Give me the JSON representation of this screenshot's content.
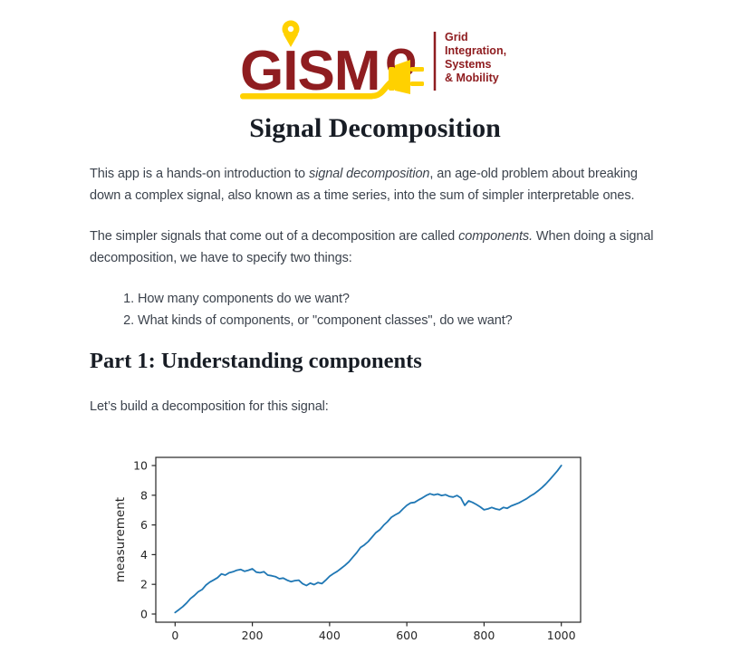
{
  "logo": {
    "wordmark": "GISM",
    "wordmark_o": "o",
    "tagline_lines": [
      "Grid",
      "Integration,",
      "Systems",
      "& Mobility"
    ],
    "maroon": "#8f1d20",
    "yellow": "#ffd100"
  },
  "page": {
    "title": "Signal Decomposition"
  },
  "intro": {
    "p1": [
      {
        "t": "This app is a hands-on introduction to "
      },
      {
        "t": "signal decomposition",
        "i": true
      },
      {
        "t": ", an age-old problem about breaking down a complex signal, also known as a time series, into the sum of simpler interpretable ones."
      }
    ],
    "p2": [
      {
        "t": "The simpler signals that come out of a decomposition are called "
      },
      {
        "t": "components.",
        "i": true
      },
      {
        "t": " When doing a signal decomposition, we have to specify two things:"
      }
    ],
    "list": [
      "How many components do we want?",
      "What kinds of components, or \"component classes\", do we want?"
    ]
  },
  "part1": {
    "heading": "Part 1: Understanding components",
    "intro": "Let’s build a decomposition for this signal:"
  },
  "chart_data": {
    "type": "line",
    "title": "",
    "xlabel": "",
    "ylabel": "measurement",
    "x_ticks": [
      0,
      200,
      400,
      600,
      800,
      1000
    ],
    "y_ticks": [
      0,
      2,
      4,
      6,
      8,
      10
    ],
    "xlim": [
      -50,
      1050
    ],
    "ylim": [
      -0.55,
      10.55
    ],
    "grid": false,
    "legend": "none",
    "line_color": "#1f77b4",
    "axis_color": "#262626",
    "series": [
      {
        "name": "signal",
        "x": [
          0,
          10,
          20,
          30,
          40,
          50,
          60,
          70,
          80,
          90,
          100,
          110,
          120,
          130,
          140,
          150,
          160,
          170,
          180,
          190,
          200,
          210,
          220,
          230,
          240,
          250,
          260,
          270,
          280,
          290,
          300,
          310,
          320,
          330,
          340,
          350,
          360,
          370,
          380,
          390,
          400,
          410,
          420,
          430,
          440,
          450,
          460,
          470,
          480,
          490,
          500,
          510,
          520,
          530,
          540,
          550,
          560,
          570,
          580,
          590,
          600,
          610,
          620,
          630,
          640,
          650,
          660,
          670,
          680,
          690,
          700,
          710,
          720,
          730,
          740,
          750,
          760,
          770,
          780,
          790,
          800,
          810,
          820,
          830,
          840,
          850,
          860,
          870,
          880,
          890,
          900,
          910,
          920,
          930,
          940,
          950,
          960,
          970,
          980,
          990,
          1000
        ],
        "y": [
          0.1,
          0.3,
          0.5,
          0.75,
          1.05,
          1.25,
          1.5,
          1.65,
          1.95,
          2.15,
          2.3,
          2.45,
          2.7,
          2.62,
          2.78,
          2.85,
          2.95,
          3.0,
          2.88,
          2.95,
          3.05,
          2.82,
          2.78,
          2.85,
          2.62,
          2.58,
          2.52,
          2.38,
          2.42,
          2.28,
          2.18,
          2.25,
          2.28,
          2.05,
          1.92,
          2.08,
          1.98,
          2.12,
          2.05,
          2.28,
          2.55,
          2.72,
          2.88,
          3.08,
          3.28,
          3.52,
          3.82,
          4.12,
          4.48,
          4.65,
          4.88,
          5.18,
          5.48,
          5.68,
          5.98,
          6.22,
          6.52,
          6.68,
          6.82,
          7.08,
          7.32,
          7.48,
          7.52,
          7.68,
          7.82,
          7.98,
          8.1,
          8.02,
          8.08,
          7.98,
          8.04,
          7.92,
          7.88,
          7.98,
          7.82,
          7.32,
          7.62,
          7.52,
          7.38,
          7.22,
          7.02,
          7.08,
          7.18,
          7.08,
          7.02,
          7.18,
          7.12,
          7.28,
          7.38,
          7.48,
          7.62,
          7.76,
          7.95,
          8.1,
          8.3,
          8.52,
          8.76,
          9.05,
          9.35,
          9.65,
          10.0
        ]
      }
    ]
  }
}
